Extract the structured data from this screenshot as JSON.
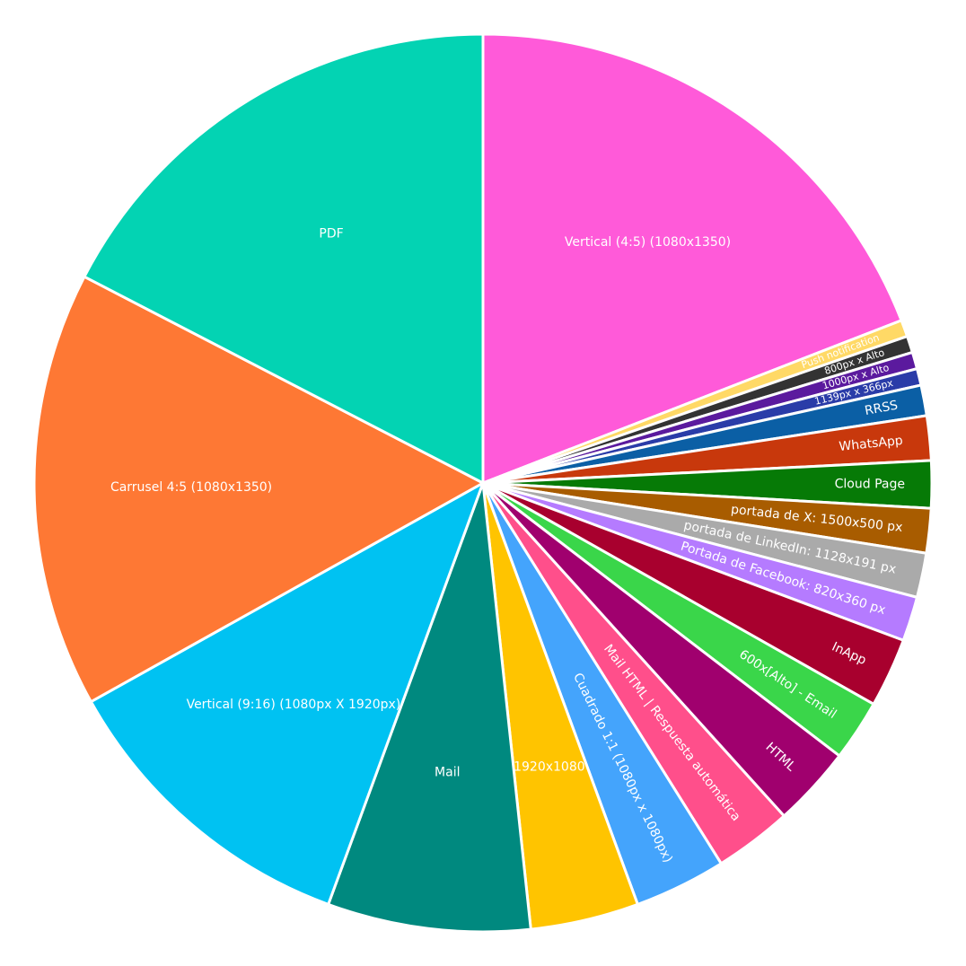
{
  "chart_data": {
    "type": "pie",
    "categories": [
      "Vertical (4:5) (1080x1350)",
      "Push notification",
      "800px x Alto",
      "1000px x Alto",
      "1139px x 366px",
      "RRSS",
      "WhatsApp",
      "Cloud Page",
      "portada de X: 1500x500 px",
      "portada de LinkedIn: 1128x191 px",
      "Portada de Facebook: 820x360 px",
      "InApp",
      "600x[Alto] - Email",
      "HTML",
      "Mail HTML | Respuesta automática",
      "Cuadrado 1:1 (1080px x 1080px)",
      "1920x1080",
      "Mail",
      "Vertical (9:16) (1080px X 1920px)",
      "Carrusel 4:5 (1080x1350)",
      "PDF"
    ],
    "values": [
      19.1,
      0.6,
      0.6,
      0.6,
      0.6,
      1.1,
      1.6,
      1.7,
      1.6,
      1.6,
      1.6,
      2.5,
      2.2,
      2.9,
      2.8,
      3.3,
      3.9,
      7.3,
      11.3,
      15.7,
      17.4
    ],
    "colors": [
      "#ff5ad9",
      "#ffd966",
      "#333333",
      "#5b1a9e",
      "#2a3ca8",
      "#0b5fa5",
      "#c8380c",
      "#067a06",
      "#a85c00",
      "#aaaaaa",
      "#b57bff",
      "#a8002e",
      "#3ad64a",
      "#a0006e",
      "#ff4f8b",
      "#44a4fc",
      "#ffc400",
      "#00897f",
      "#00c2f2",
      "#fe7834",
      "#03d3b3"
    ]
  }
}
